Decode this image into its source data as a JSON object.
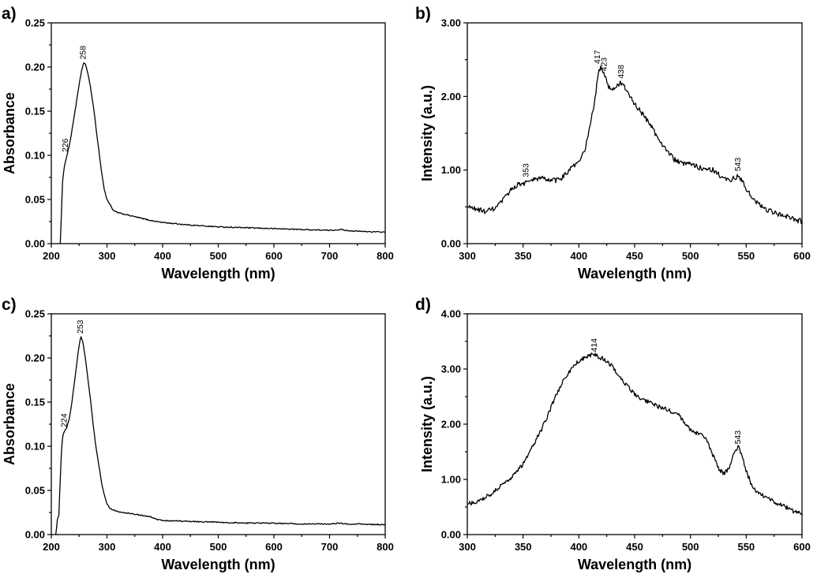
{
  "chart_data": [
    {
      "id": "a",
      "panel_label": "a)",
      "type": "line",
      "xlabel": "Wavelength (nm)",
      "ylabel": "Absorbance",
      "xlim": [
        200,
        800
      ],
      "ylim": [
        0.0,
        0.25
      ],
      "xticks": [
        200,
        300,
        400,
        500,
        600,
        700,
        800
      ],
      "yticks": [
        0.0,
        0.05,
        0.1,
        0.15,
        0.2,
        0.25
      ],
      "ytick_decimals": 2,
      "grid": false,
      "noise": 0.0006,
      "series": [
        {
          "x": [
            216,
            218,
            220,
            223,
            226,
            230,
            235,
            240,
            245,
            250,
            254,
            258,
            262,
            266,
            270,
            275,
            280,
            285,
            290,
            295,
            300,
            305,
            308,
            310,
            320,
            340,
            360,
            380,
            400,
            450,
            500,
            550,
            600,
            650,
            700,
            720,
            730,
            750,
            800
          ],
          "y": [
            0.0,
            0.03,
            0.07,
            0.085,
            0.095,
            0.105,
            0.12,
            0.14,
            0.16,
            0.18,
            0.195,
            0.205,
            0.202,
            0.192,
            0.178,
            0.158,
            0.133,
            0.108,
            0.083,
            0.062,
            0.05,
            0.045,
            0.042,
            0.038,
            0.035,
            0.032,
            0.029,
            0.026,
            0.024,
            0.021,
            0.019,
            0.018,
            0.017,
            0.016,
            0.015,
            0.016,
            0.015,
            0.014,
            0.013
          ]
        }
      ],
      "annotations": [
        {
          "text": "258",
          "x": 258,
          "y": 0.205
        },
        {
          "text": "226",
          "x": 226,
          "y": 0.1
        }
      ]
    },
    {
      "id": "b",
      "panel_label": "b)",
      "type": "line",
      "xlabel": "Wavelength (nm)",
      "ylabel": "Intensity (a.u.)",
      "xlim": [
        300,
        600
      ],
      "ylim": [
        0.0,
        3.0
      ],
      "xticks": [
        300,
        350,
        400,
        450,
        500,
        550,
        600
      ],
      "yticks": [
        0.0,
        1.0,
        2.0,
        3.0
      ],
      "ytick_decimals": 2,
      "grid": false,
      "noise": 0.035,
      "series": [
        {
          "x": [
            300,
            305,
            310,
            315,
            320,
            325,
            330,
            335,
            340,
            345,
            350,
            355,
            360,
            365,
            370,
            375,
            380,
            385,
            390,
            395,
            400,
            405,
            410,
            415,
            417,
            420,
            423,
            426,
            430,
            434,
            438,
            442,
            446,
            450,
            455,
            460,
            465,
            470,
            475,
            480,
            485,
            490,
            495,
            500,
            505,
            510,
            515,
            520,
            525,
            530,
            535,
            540,
            543,
            546,
            550,
            555,
            560,
            565,
            570,
            575,
            580,
            585,
            590,
            595,
            600
          ],
          "y": [
            0.5,
            0.48,
            0.46,
            0.44,
            0.45,
            0.48,
            0.55,
            0.65,
            0.75,
            0.8,
            0.82,
            0.84,
            0.87,
            0.89,
            0.88,
            0.86,
            0.86,
            0.9,
            0.98,
            1.05,
            1.1,
            1.25,
            1.6,
            2.0,
            2.3,
            2.4,
            2.3,
            2.15,
            2.1,
            2.15,
            2.18,
            2.1,
            2.0,
            1.9,
            1.8,
            1.7,
            1.6,
            1.45,
            1.35,
            1.25,
            1.15,
            1.1,
            1.08,
            1.08,
            1.05,
            1.03,
            1.02,
            1.0,
            0.95,
            0.88,
            0.85,
            0.9,
            0.92,
            0.85,
            0.75,
            0.62,
            0.55,
            0.5,
            0.45,
            0.42,
            0.4,
            0.38,
            0.35,
            0.32,
            0.3
          ]
        }
      ],
      "annotations": [
        {
          "text": "417",
          "x": 417,
          "y": 2.4
        },
        {
          "text": "423",
          "x": 423,
          "y": 2.3
        },
        {
          "text": "438",
          "x": 438,
          "y": 2.2
        },
        {
          "text": "353",
          "x": 353,
          "y": 0.86
        },
        {
          "text": "543",
          "x": 543,
          "y": 0.94
        }
      ]
    },
    {
      "id": "c",
      "panel_label": "c)",
      "type": "line",
      "xlabel": "Wavelength (nm)",
      "ylabel": "Absorbance",
      "xlim": [
        200,
        800
      ],
      "ylim": [
        0.0,
        0.25
      ],
      "xticks": [
        200,
        300,
        400,
        500,
        600,
        700,
        800
      ],
      "yticks": [
        0.0,
        0.05,
        0.1,
        0.15,
        0.2,
        0.25
      ],
      "ytick_decimals": 2,
      "grid": false,
      "noise": 0.0006,
      "series": [
        {
          "x": [
            208,
            210,
            212,
            213,
            214,
            216,
            218,
            220,
            224,
            228,
            232,
            236,
            240,
            244,
            248,
            251,
            253,
            256,
            260,
            265,
            270,
            275,
            280,
            285,
            290,
            295,
            300,
            305,
            310,
            320,
            340,
            360,
            380,
            390,
            400,
            450,
            500,
            550,
            600,
            650,
            700,
            720,
            730,
            750,
            800
          ],
          "y": [
            0.0,
            0.01,
            0.025,
            0.005,
            0.03,
            0.06,
            0.09,
            0.11,
            0.118,
            0.122,
            0.13,
            0.145,
            0.165,
            0.185,
            0.205,
            0.218,
            0.224,
            0.22,
            0.205,
            0.18,
            0.155,
            0.125,
            0.1,
            0.08,
            0.06,
            0.045,
            0.035,
            0.03,
            0.028,
            0.026,
            0.024,
            0.022,
            0.02,
            0.017,
            0.016,
            0.015,
            0.014,
            0.013,
            0.013,
            0.012,
            0.012,
            0.013,
            0.012,
            0.012,
            0.011
          ]
        }
      ],
      "annotations": [
        {
          "text": "253",
          "x": 253,
          "y": 0.224
        },
        {
          "text": "224",
          "x": 224,
          "y": 0.118
        }
      ]
    },
    {
      "id": "d",
      "panel_label": "d)",
      "type": "line",
      "xlabel": "Wavelength (nm)",
      "ylabel": "Intensity (a.u.)",
      "xlim": [
        300,
        600
      ],
      "ylim": [
        0.0,
        4.0
      ],
      "xticks": [
        300,
        350,
        400,
        450,
        500,
        550,
        600
      ],
      "yticks": [
        0.0,
        1.0,
        2.0,
        3.0,
        4.0
      ],
      "ytick_decimals": 2,
      "grid": false,
      "noise": 0.04,
      "series": [
        {
          "x": [
            300,
            305,
            310,
            315,
            320,
            325,
            330,
            335,
            340,
            345,
            350,
            355,
            360,
            365,
            370,
            375,
            380,
            385,
            390,
            395,
            400,
            405,
            410,
            414,
            418,
            422,
            425,
            430,
            435,
            440,
            445,
            450,
            455,
            460,
            465,
            470,
            475,
            480,
            485,
            490,
            495,
            500,
            505,
            510,
            515,
            520,
            525,
            530,
            535,
            538,
            541,
            543,
            546,
            550,
            555,
            560,
            565,
            570,
            575,
            580,
            585,
            590,
            595,
            600
          ],
          "y": [
            0.55,
            0.58,
            0.62,
            0.66,
            0.72,
            0.8,
            0.88,
            0.96,
            1.05,
            1.15,
            1.28,
            1.45,
            1.65,
            1.85,
            2.05,
            2.3,
            2.55,
            2.75,
            2.9,
            3.05,
            3.15,
            3.2,
            3.25,
            3.25,
            3.22,
            3.18,
            3.15,
            3.05,
            2.9,
            2.78,
            2.65,
            2.55,
            2.48,
            2.42,
            2.38,
            2.33,
            2.3,
            2.25,
            2.2,
            2.15,
            2.0,
            1.9,
            1.85,
            1.8,
            1.7,
            1.45,
            1.2,
            1.1,
            1.2,
            1.4,
            1.55,
            1.58,
            1.45,
            1.15,
            0.9,
            0.75,
            0.7,
            0.65,
            0.6,
            0.55,
            0.5,
            0.45,
            0.4,
            0.38
          ]
        }
      ],
      "annotations": [
        {
          "text": "414",
          "x": 414,
          "y": 3.25
        },
        {
          "text": "543",
          "x": 543,
          "y": 1.58
        }
      ]
    }
  ]
}
